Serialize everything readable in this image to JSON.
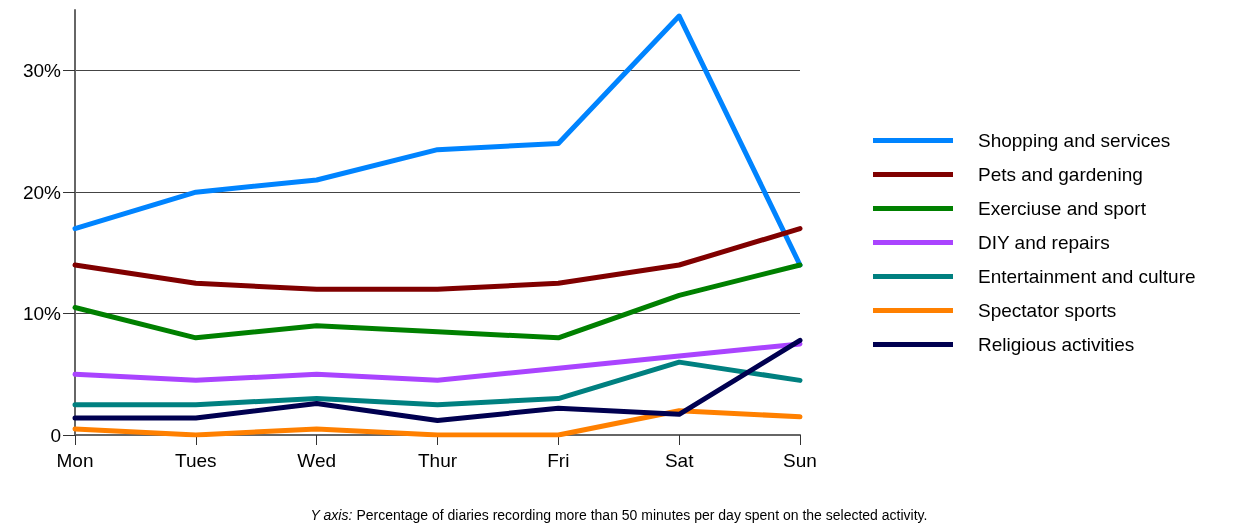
{
  "chart_data": {
    "type": "line",
    "categories": [
      "Mon",
      "Tues",
      "Wed",
      "Thur",
      "Fri",
      "Sat",
      "Sun"
    ],
    "series": [
      {
        "name": "Shopping and services",
        "color": "#0084ff",
        "values": [
          17,
          20,
          21,
          23.5,
          24,
          34.5,
          14
        ]
      },
      {
        "name": "Pets and gardening",
        "color": "#800000",
        "values": [
          14,
          12.5,
          12,
          12,
          12.5,
          14,
          17
        ]
      },
      {
        "name": "Exerciuse and sport",
        "color": "#008000",
        "values": [
          10.5,
          8,
          9,
          8.5,
          8,
          11.5,
          14
        ]
      },
      {
        "name": "DIY and repairs",
        "color": "#aa44ff",
        "values": [
          5,
          4.5,
          5,
          4.5,
          5.5,
          6.5,
          7.5
        ]
      },
      {
        "name": "Entertainment and culture",
        "color": "#008080",
        "values": [
          2.5,
          2.5,
          3,
          2.5,
          3,
          6,
          4.5
        ]
      },
      {
        "name": "Spectator sports",
        "color": "#ff8000",
        "values": [
          0.5,
          0,
          0.5,
          0,
          0,
          2,
          1.5
        ]
      },
      {
        "name": "Religious activities",
        "color": "#000050",
        "values": [
          1.4,
          1.4,
          2.6,
          1.2,
          2.2,
          1.7,
          7.8
        ]
      }
    ],
    "ylim": [
      0,
      35
    ],
    "yticks": [
      {
        "value": 0,
        "label": "0"
      },
      {
        "value": 10,
        "label": "10%"
      },
      {
        "value": 20,
        "label": "20%"
      },
      {
        "value": 30,
        "label": "30%"
      }
    ],
    "grid": "y",
    "legend": "right",
    "marker": "none",
    "line_style": "solid",
    "annotations": [
      "Y axis: Percentage of diaries recording more than 50 minutes per day spent on the selected activity."
    ]
  }
}
